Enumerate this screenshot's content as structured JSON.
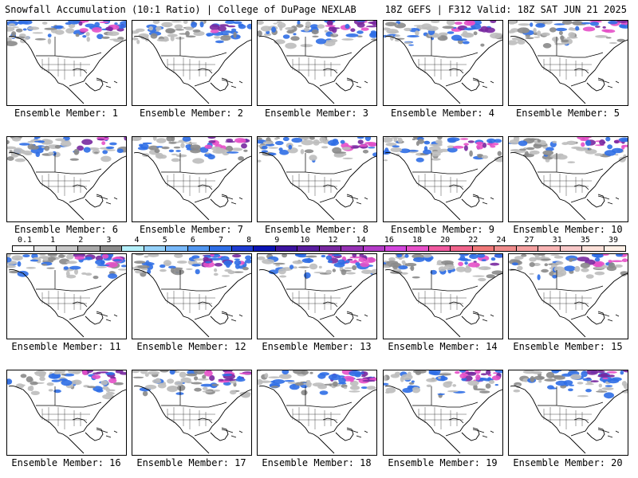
{
  "header": {
    "title_left": "Snowfall Accumulation (10:1 Ratio) | College of DuPage NEXLAB",
    "title_right": "18Z GEFS | F312 Valid: 18Z SAT JUN 21 2025"
  },
  "caption_prefix": "Ensemble Member:",
  "members": [
    {
      "caption": "Ensemble Member: 1"
    },
    {
      "caption": "Ensemble Member: 2"
    },
    {
      "caption": "Ensemble Member: 3"
    },
    {
      "caption": "Ensemble Member: 4"
    },
    {
      "caption": "Ensemble Member: 5"
    },
    {
      "caption": "Ensemble Member: 6"
    },
    {
      "caption": "Ensemble Member: 7"
    },
    {
      "caption": "Ensemble Member: 8"
    },
    {
      "caption": "Ensemble Member: 9"
    },
    {
      "caption": "Ensemble Member: 10"
    },
    {
      "caption": "Ensemble Member: 11"
    },
    {
      "caption": "Ensemble Member: 12"
    },
    {
      "caption": "Ensemble Member: 13"
    },
    {
      "caption": "Ensemble Member: 14"
    },
    {
      "caption": "Ensemble Member: 15"
    },
    {
      "caption": "Ensemble Member: 16"
    },
    {
      "caption": "Ensemble Member: 17"
    },
    {
      "caption": "Ensemble Member: 18"
    },
    {
      "caption": "Ensemble Member: 19"
    },
    {
      "caption": "Ensemble Member: 20"
    }
  ],
  "colorbar": {
    "labels": [
      "0.1",
      "1",
      "2",
      "3",
      "4",
      "5",
      "6",
      "7",
      "8",
      "9",
      "10",
      "12",
      "14",
      "16",
      "18",
      "20",
      "22",
      "24",
      "27",
      "31",
      "35",
      "39"
    ],
    "colors": [
      "#ffffff",
      "#e6e6e6",
      "#c8c8c8",
      "#aaaaaa",
      "#8c8c8c",
      "#b4f0fa",
      "#96d2fa",
      "#78b9fa",
      "#5096f0",
      "#2f6ee6",
      "#1e3cd2",
      "#0a14b4",
      "#3c14a0",
      "#5a1ea0",
      "#7828a0",
      "#9632b4",
      "#b43cc8",
      "#d246dc",
      "#e650c8",
      "#f05aa0",
      "#f0648c",
      "#f07878",
      "#f08c8c",
      "#f4a0a0",
      "#f8b4b4",
      "#f8c8c8",
      "#fce0d8",
      "#fff0e6"
    ]
  },
  "colors": {
    "land": "#ffffff",
    "border": "#000000",
    "snow_light": "#bdbdbd",
    "snow_mid": "#8a8a8a",
    "snow_blue": "#2f6ee6",
    "snow_purple": "#7828a0",
    "snow_magenta": "#e650c8"
  }
}
